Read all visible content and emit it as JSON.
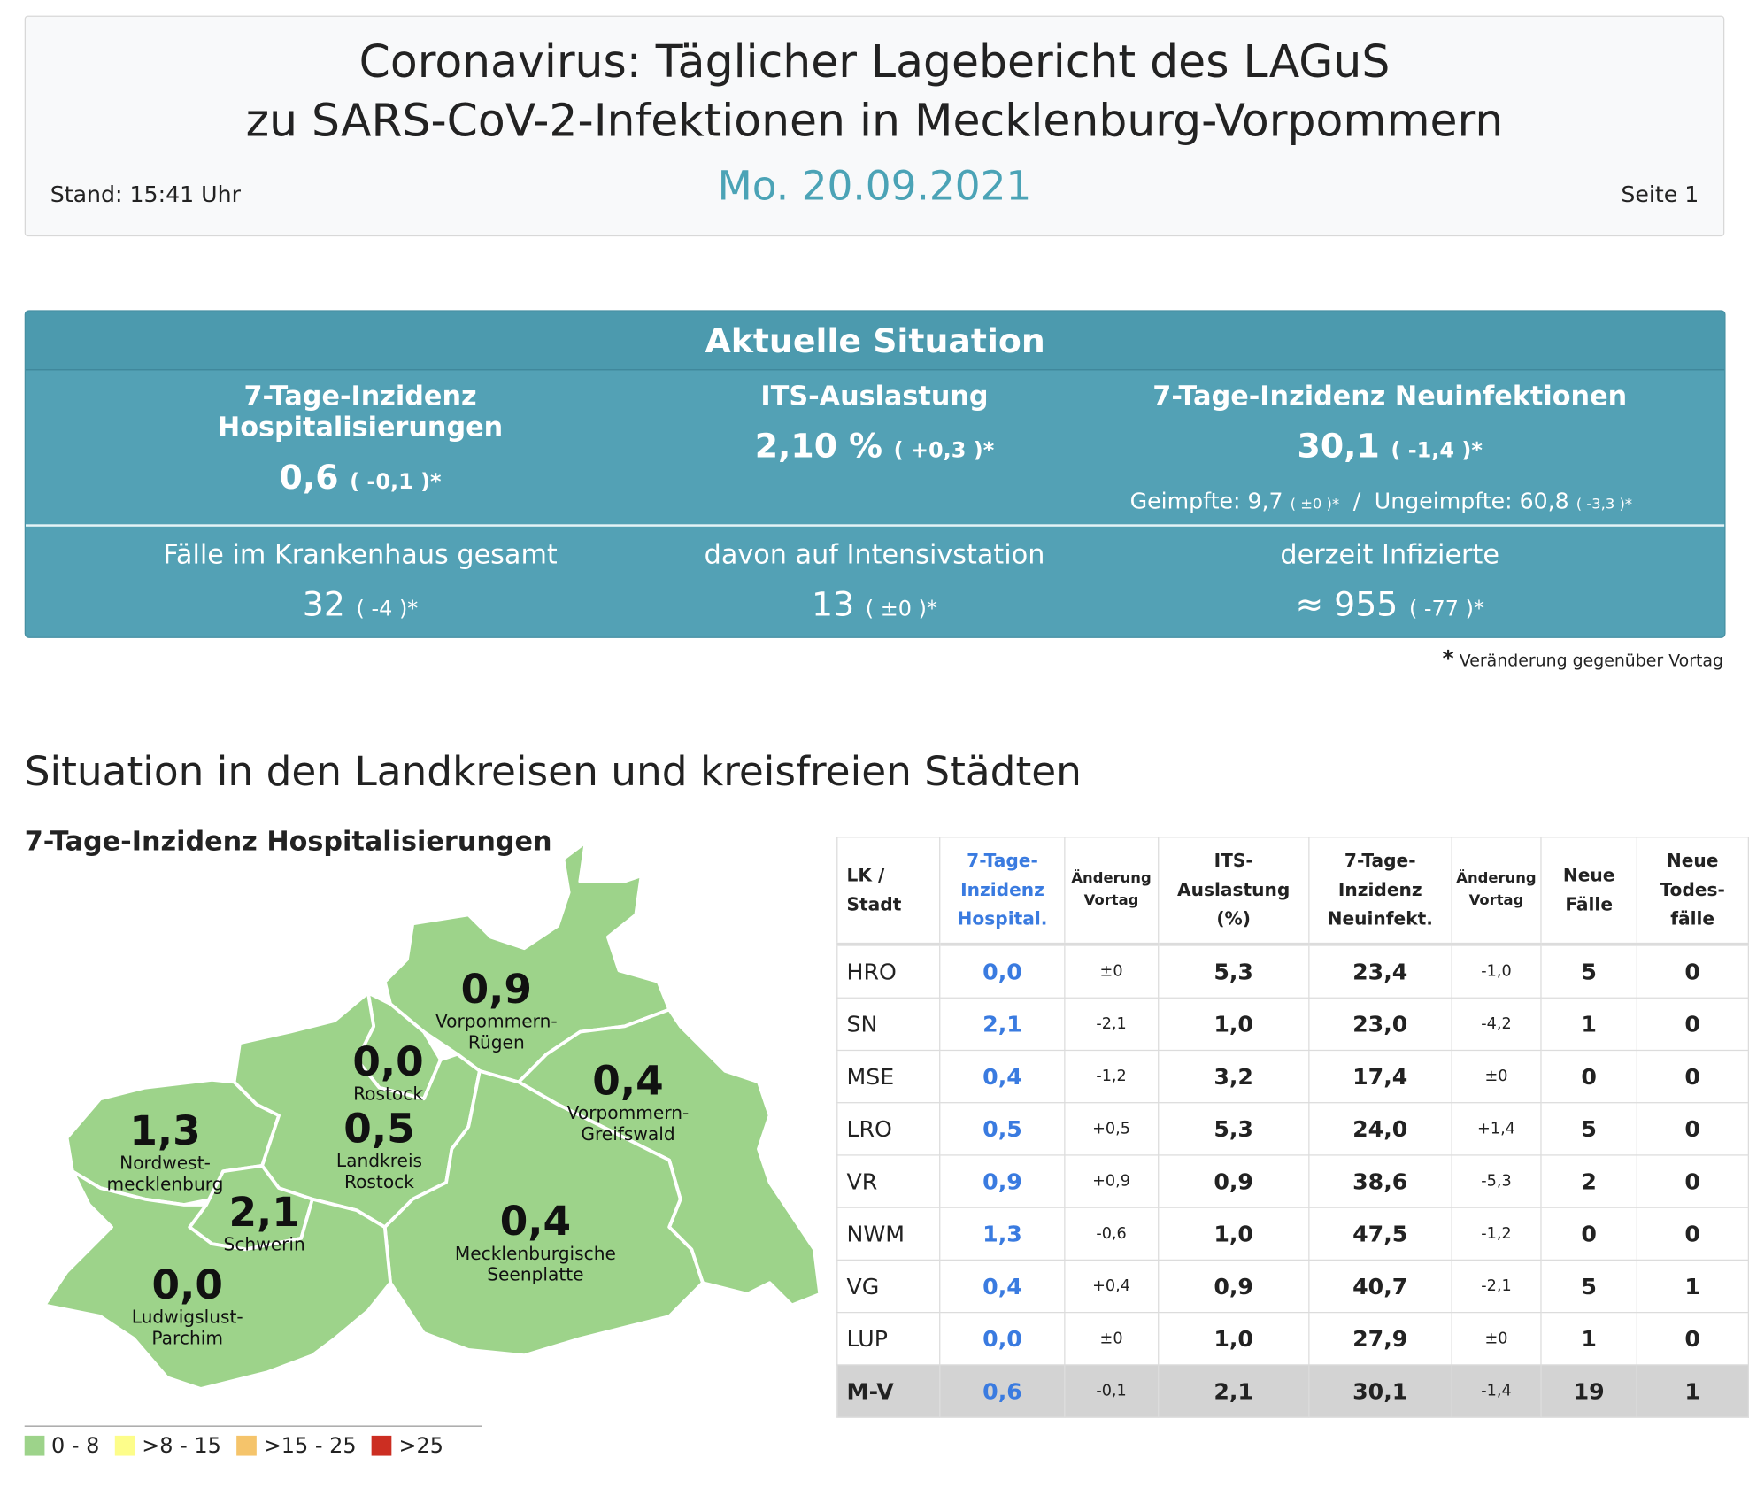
{
  "header": {
    "title_line1": "Coronavirus: Täglicher Lagebericht des LAGuS",
    "title_line2": "zu SARS-CoV-2-Infektionen in Mecklenburg-Vorpommern",
    "date": "Mo. 20.09.2021",
    "stand": "Stand: 15:41 Uhr",
    "page": "Seite 1"
  },
  "situation": {
    "heading": "Aktuelle Situation",
    "top": [
      {
        "label": "7-Tage-Inzidenz Hospitalisierungen",
        "value": "0,6",
        "change": "( -0,1 )*"
      },
      {
        "label": "ITS-Auslastung",
        "value": "2,10 %",
        "change": "( +0,3 )*"
      },
      {
        "label": "7-Tage-Inzidenz Neuinfektionen",
        "value": "30,1",
        "change": "( -1,4 )*"
      }
    ],
    "vacc": {
      "geimpfte": "Geimpfte: 9,7",
      "geimpfte_change": "( ±0 )*",
      "sep": "/",
      "ungeimpfte": "Ungeimpfte: 60,8",
      "ungeimpfte_change": "( -3,3 )*"
    },
    "bottom": [
      {
        "label": "Fälle im Krankenhaus gesamt",
        "value": "32",
        "change": "( -4 )*"
      },
      {
        "label": "davon auf Intensivstation",
        "value": "13",
        "change": "( ±0 )*"
      },
      {
        "label": "derzeit Infizierte",
        "value": "≈ 955",
        "change": "( -77 )*"
      }
    ],
    "footnote_star": "*",
    "footnote": "Veränderung gegenüber Vortag"
  },
  "section_title": "Situation in den Landkreisen und kreisfreien Städten",
  "map": {
    "title": "7-Tage-Inzidenz Hospitalisierungen",
    "fill_color": "#9dd38a",
    "regions": [
      {
        "value": "0,9",
        "name": "Vorpommern-\nRügen"
      },
      {
        "value": "0,0",
        "name": "Rostock"
      },
      {
        "value": "0,4",
        "name": "Vorpommern-\nGreifswald"
      },
      {
        "value": "1,3",
        "name": "Nordwest-\nmecklenburg"
      },
      {
        "value": "0,5",
        "name": "Landkreis\nRostock"
      },
      {
        "value": "2,1",
        "name": "Schwerin"
      },
      {
        "value": "0,4",
        "name": "Mecklenburgische\nSeenplatte"
      },
      {
        "value": "0,0",
        "name": "Ludwigslust-\nParchim"
      }
    ],
    "legend": [
      {
        "label": "0 - 8",
        "color": "#9dd38a"
      },
      {
        "label": ">8 - 15",
        "color": "#fdfd8a"
      },
      {
        "label": ">15 - 25",
        "color": "#f5c46b"
      },
      {
        "label": ">25",
        "color": "#cc2e22"
      }
    ]
  },
  "table": {
    "headers": [
      "LK /\nStadt",
      "7-Tage-\nInzidenz\nHospital.",
      "Änderung\nVortag",
      "ITS-\nAuslastung\n(%)",
      "7-Tage-\nInzidenz\nNeuinfekt.",
      "Änderung\nVortag",
      "Neue\nFälle",
      "Neue\nTodes-\nfälle"
    ],
    "hosp_color": "#3a7be0",
    "rows": [
      [
        "HRO",
        "0,0",
        "±0",
        "5,3",
        "23,4",
        "-1,0",
        "5",
        "0"
      ],
      [
        "SN",
        "2,1",
        "-2,1",
        "1,0",
        "23,0",
        "-4,2",
        "1",
        "0"
      ],
      [
        "MSE",
        "0,4",
        "-1,2",
        "3,2",
        "17,4",
        "±0",
        "0",
        "0"
      ],
      [
        "LRO",
        "0,5",
        "+0,5",
        "5,3",
        "24,0",
        "+1,4",
        "5",
        "0"
      ],
      [
        "VR",
        "0,9",
        "+0,9",
        "0,9",
        "38,6",
        "-5,3",
        "2",
        "0"
      ],
      [
        "NWM",
        "1,3",
        "-0,6",
        "1,0",
        "47,5",
        "-1,2",
        "0",
        "0"
      ],
      [
        "VG",
        "0,4",
        "+0,4",
        "0,9",
        "40,7",
        "-2,1",
        "5",
        "1"
      ],
      [
        "LUP",
        "0,0",
        "±0",
        "1,0",
        "27,9",
        "±0",
        "1",
        "0"
      ]
    ],
    "total": [
      "M-V",
      "0,6",
      "-0,1",
      "2,1",
      "30,1",
      "-1,4",
      "19",
      "1"
    ]
  }
}
